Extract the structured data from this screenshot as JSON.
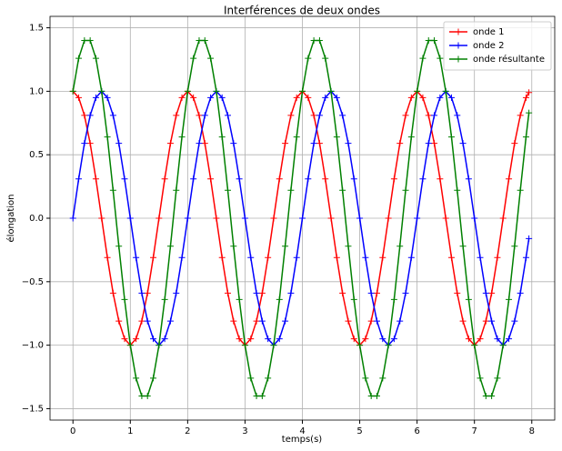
{
  "chart_data": {
    "type": "line",
    "title": "Interférences de deux ondes",
    "xlabel": "temps(s)",
    "ylabel": "élongation",
    "x": [
      0,
      0.1,
      0.2,
      0.3,
      0.4,
      0.5,
      0.6,
      0.7,
      0.8,
      0.9,
      1,
      1.1,
      1.2,
      1.3,
      1.4,
      1.5,
      1.6,
      1.7,
      1.8,
      1.9,
      2,
      2.1,
      2.2,
      2.3,
      2.4,
      2.5,
      2.6,
      2.7,
      2.8,
      2.9,
      3,
      3.1,
      3.2,
      3.3,
      3.4,
      3.5,
      3.6,
      3.7,
      3.8,
      3.9,
      4,
      4.1,
      4.2,
      4.3,
      4.4,
      4.5,
      4.6,
      4.7,
      4.8,
      4.9,
      5,
      5.1,
      5.2,
      5.3,
      5.4,
      5.5,
      5.6,
      5.7,
      5.8,
      5.9,
      6,
      6.1,
      6.2,
      6.3,
      6.4,
      6.5,
      6.6,
      6.7,
      6.8,
      6.9,
      7,
      7.1,
      7.2,
      7.3,
      7.4,
      7.5,
      7.6,
      7.7,
      7.8,
      7.9,
      7.95
    ],
    "series": [
      {
        "name": "onde 1",
        "color": "#ff0000",
        "values": [
          1,
          0.95,
          0.81,
          0.59,
          0.31,
          0,
          -0.31,
          -0.59,
          -0.81,
          -0.95,
          -1,
          -0.95,
          -0.81,
          -0.59,
          -0.31,
          0,
          0.31,
          0.59,
          0.81,
          0.95,
          1,
          0.95,
          0.81,
          0.59,
          0.31,
          0,
          -0.31,
          -0.59,
          -0.81,
          -0.95,
          -1,
          -0.95,
          -0.81,
          -0.59,
          -0.31,
          0,
          0.31,
          0.59,
          0.81,
          0.95,
          1,
          0.95,
          0.81,
          0.59,
          0.31,
          0,
          -0.31,
          -0.59,
          -0.81,
          -0.95,
          -1,
          -0.95,
          -0.81,
          -0.59,
          -0.31,
          0,
          0.31,
          0.59,
          0.81,
          0.95,
          1,
          0.95,
          0.81,
          0.59,
          0.31,
          0,
          -0.31,
          -0.59,
          -0.81,
          -0.95,
          -1,
          -0.95,
          -0.81,
          -0.59,
          -0.31,
          0,
          0.31,
          0.59,
          0.81,
          0.95,
          0.99
        ]
      },
      {
        "name": "onde 2",
        "color": "#0000ff",
        "values": [
          0,
          0.31,
          0.59,
          0.81,
          0.95,
          1,
          0.95,
          0.81,
          0.59,
          0.31,
          0,
          -0.31,
          -0.59,
          -0.81,
          -0.95,
          -1,
          -0.95,
          -0.81,
          -0.59,
          -0.31,
          0,
          0.31,
          0.59,
          0.81,
          0.95,
          1,
          0.95,
          0.81,
          0.59,
          0.31,
          0,
          -0.31,
          -0.59,
          -0.81,
          -0.95,
          -1,
          -0.95,
          -0.81,
          -0.59,
          -0.31,
          0,
          0.31,
          0.59,
          0.81,
          0.95,
          1,
          0.95,
          0.81,
          0.59,
          0.31,
          0,
          -0.31,
          -0.59,
          -0.81,
          -0.95,
          -1,
          -0.95,
          -0.81,
          -0.59,
          -0.31,
          0,
          0.31,
          0.59,
          0.81,
          0.95,
          1,
          0.95,
          0.81,
          0.59,
          0.31,
          0,
          -0.31,
          -0.59,
          -0.81,
          -0.95,
          -1,
          -0.95,
          -0.81,
          -0.59,
          -0.31,
          -0.16
        ]
      },
      {
        "name": "onde résultante",
        "color": "#008000",
        "values": [
          1,
          1.26,
          1.4,
          1.4,
          1.26,
          1,
          0.64,
          0.22,
          -0.22,
          -0.64,
          -1,
          -1.26,
          -1.4,
          -1.4,
          -1.26,
          -1,
          -0.64,
          -0.22,
          0.22,
          0.64,
          1,
          1.26,
          1.4,
          1.4,
          1.26,
          1,
          0.64,
          0.22,
          -0.22,
          -0.64,
          -1,
          -1.26,
          -1.4,
          -1.4,
          -1.26,
          -1,
          -0.64,
          -0.22,
          0.22,
          0.64,
          1,
          1.26,
          1.4,
          1.4,
          1.26,
          1,
          0.64,
          0.22,
          -0.22,
          -0.64,
          -1,
          -1.26,
          -1.4,
          -1.4,
          -1.26,
          -1,
          -0.64,
          -0.22,
          0.22,
          0.64,
          1,
          1.26,
          1.4,
          1.4,
          1.26,
          1,
          0.64,
          0.22,
          -0.22,
          -0.64,
          -1,
          -1.26,
          -1.4,
          -1.4,
          -1.26,
          -1,
          -0.64,
          -0.22,
          0.22,
          0.64,
          0.83
        ]
      }
    ],
    "xlim": [
      -0.4,
      8.4
    ],
    "ylim": [
      -1.59,
      1.59
    ],
    "xticks": [
      0,
      1,
      2,
      3,
      4,
      5,
      6,
      7,
      8
    ],
    "yticks": [
      {
        "value": -1.5,
        "label": "−1.5"
      },
      {
        "value": -1,
        "label": "−1.0"
      },
      {
        "value": -0.5,
        "label": "−0.5"
      },
      {
        "value": 0,
        "label": "0.0"
      },
      {
        "value": 0.5,
        "label": "0.5"
      },
      {
        "value": 1,
        "label": "1.0"
      },
      {
        "value": 1.5,
        "label": "1.5"
      }
    ],
    "grid": true,
    "legend": "upper right",
    "marker": "+"
  }
}
